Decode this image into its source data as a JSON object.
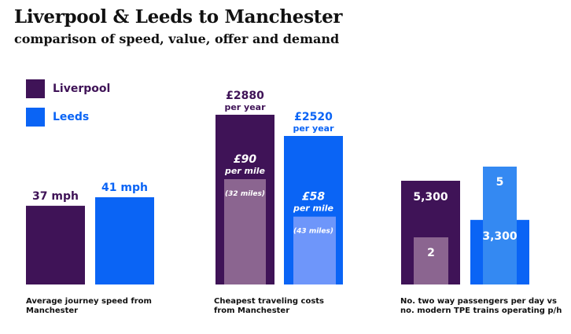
{
  "title": "Liverpool & Leeds to Manchester",
  "subtitle": "comparison of speed, value, offer and demand",
  "colors": {
    "liverpool": "#3f1357",
    "leeds": "#0a64f5",
    "liverpool_inner": "#8b6590",
    "leeds_inner": "#6e96fa",
    "leeds_trains": "#3489f2"
  },
  "legend": [
    {
      "label": "Liverpool",
      "color": "#3f1357",
      "text_color": "#3f1357"
    },
    {
      "label": "Leeds",
      "color": "#0a64f5",
      "text_color": "#0a64f5"
    }
  ],
  "captions": {
    "speed": [
      "Average journey speed from",
      "Manchester"
    ],
    "cost": [
      "Cheapest traveling costs",
      "from Manchester"
    ],
    "demand": [
      "No. two way passengers per day vs",
      "no. modern TPE trains operating p/h"
    ]
  },
  "chart_data": [
    {
      "type": "bar",
      "title": "Average journey speed from Manchester",
      "categories": [
        "Liverpool",
        "Leeds"
      ],
      "values": [
        37,
        41
      ],
      "unit": "mph",
      "labels": [
        "37 mph",
        "41 mph"
      ]
    },
    {
      "type": "bar",
      "title": "Cheapest traveling costs from Manchester",
      "categories": [
        "Liverpool",
        "Leeds"
      ],
      "series": [
        {
          "name": "per year",
          "values": [
            2880,
            2520
          ],
          "labels": [
            "£2880",
            "£2520"
          ],
          "sublabel": "per year"
        },
        {
          "name": "per mile",
          "values": [
            90,
            58
          ],
          "labels": [
            "£90",
            "£58"
          ],
          "sublabel": "per mile"
        }
      ],
      "miles": [
        "(32 miles)",
        "(43 miles)"
      ]
    },
    {
      "type": "bar",
      "title": "No. two way passengers per day vs no. modern TPE trains operating p/h",
      "categories": [
        "Liverpool",
        "Leeds"
      ],
      "series": [
        {
          "name": "passengers per day",
          "values": [
            5300,
            3300
          ],
          "labels": [
            "5,300",
            "3,300"
          ]
        },
        {
          "name": "modern TPE trains p/h",
          "values": [
            2,
            5
          ],
          "labels": [
            "2",
            "5"
          ]
        }
      ]
    }
  ]
}
